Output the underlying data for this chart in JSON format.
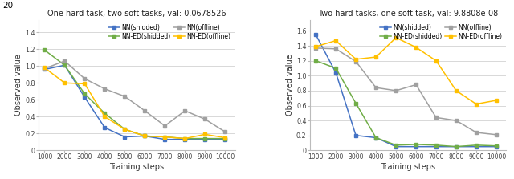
{
  "chart1": {
    "title": "One hard task, two soft tasks, val: 0.0678526",
    "xlabel": "Training steps",
    "ylabel": "Observed value",
    "x": [
      1000,
      2000,
      3000,
      4000,
      5000,
      6000,
      7000,
      8000,
      9000,
      10000
    ],
    "series": {
      "NN(shidded)": {
        "y": [
          0.96,
          1.01,
          0.63,
          0.27,
          0.16,
          0.17,
          0.13,
          0.13,
          0.13,
          0.13
        ],
        "color": "#4472C4",
        "marker": "s"
      },
      "NN-ED(shidded)": {
        "y": [
          1.19,
          1.01,
          0.67,
          0.44,
          0.25,
          0.17,
          0.16,
          0.14,
          0.14,
          0.14
        ],
        "color": "#70AD47",
        "marker": "s"
      },
      "NN(offline)": {
        "y": [
          0.97,
          1.06,
          0.85,
          0.73,
          0.64,
          0.47,
          0.29,
          0.47,
          0.37,
          0.22
        ],
        "color": "#A0A0A0",
        "marker": "s"
      },
      "NN-ED(offline)": {
        "y": [
          0.98,
          0.8,
          0.79,
          0.4,
          0.25,
          0.17,
          0.16,
          0.14,
          0.19,
          0.15
        ],
        "color": "#FFC000",
        "marker": "s"
      }
    },
    "ylim": [
      0,
      1.55
    ],
    "yticks": [
      0,
      0.2,
      0.4,
      0.6,
      0.8,
      1.0,
      1.2,
      1.4
    ]
  },
  "chart2": {
    "title": "Two hard tasks, one soft task, val: 9.8808e-08",
    "xlabel": "Training steps",
    "ylabel": "Observed value",
    "x": [
      1000,
      2000,
      3000,
      4000,
      5000,
      6000,
      7000,
      8000,
      9000,
      10000
    ],
    "series": {
      "NN(shidded)": {
        "y": [
          1.55,
          1.04,
          0.2,
          0.17,
          0.05,
          0.05,
          0.05,
          0.05,
          0.05,
          0.05
        ],
        "color": "#4472C4",
        "marker": "s"
      },
      "NN-ED(shidded)": {
        "y": [
          1.2,
          1.1,
          0.63,
          0.17,
          0.07,
          0.08,
          0.07,
          0.05,
          0.07,
          0.06
        ],
        "color": "#70AD47",
        "marker": "s"
      },
      "NN(offline)": {
        "y": [
          1.37,
          1.36,
          1.19,
          0.84,
          0.8,
          0.88,
          0.44,
          0.4,
          0.24,
          0.21
        ],
        "color": "#A0A0A0",
        "marker": "s"
      },
      "NN-ED(offline)": {
        "y": [
          1.39,
          1.47,
          1.22,
          1.25,
          1.51,
          1.38,
          1.2,
          0.8,
          0.62,
          0.67
        ],
        "color": "#FFC000",
        "marker": "s"
      }
    },
    "ylim": [
      0,
      1.75
    ],
    "yticks": [
      0,
      0.2,
      0.4,
      0.6,
      0.8,
      1.0,
      1.2,
      1.4,
      1.6
    ]
  },
  "fig_bg": "#FFFFFF",
  "plot_bg": "#FFFFFF",
  "grid_color": "#D8D8D8",
  "fig_text": "20",
  "legend_order": [
    "NN(shidded)",
    "NN-ED(shidded)",
    "NN(offline)",
    "NN-ED(offline)"
  ]
}
